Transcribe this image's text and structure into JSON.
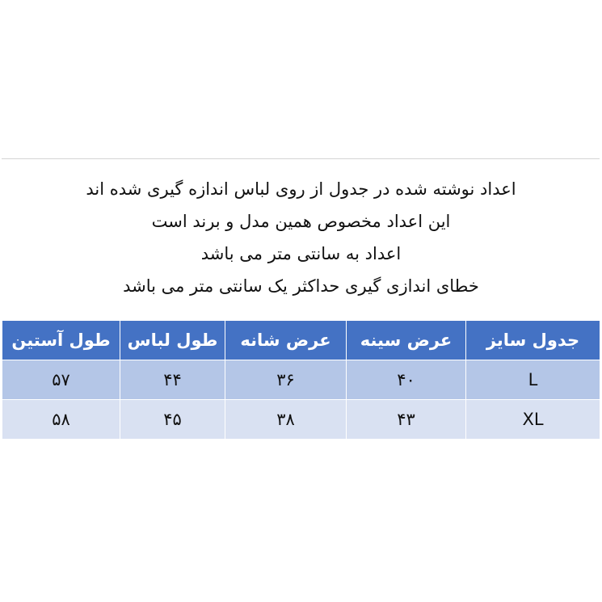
{
  "notes": [
    "اعداد نوشته شده در جدول از روی لباس اندازه گیری شده اند",
    "این اعداد مخصوص همین مدل و برند است",
    "اعداد به سانتی متر می باشد",
    "خطای اندازی گیری حداکثر یک سانتی متر می باشد"
  ],
  "table": {
    "headers": [
      "جدول سایز",
      "عرض سینه",
      "عرض شانه",
      "طول لباس",
      "طول آستین"
    ],
    "rows": [
      [
        "L",
        "۴۰",
        "۳۶",
        "۴۴",
        "۵۷"
      ],
      [
        "XL",
        "۴۳",
        "۳۸",
        "۴۵",
        "۵۸"
      ]
    ]
  },
  "colors": {
    "header": "#4472c4",
    "row_odd": "#b4c6e7",
    "row_even": "#d9e1f2"
  }
}
